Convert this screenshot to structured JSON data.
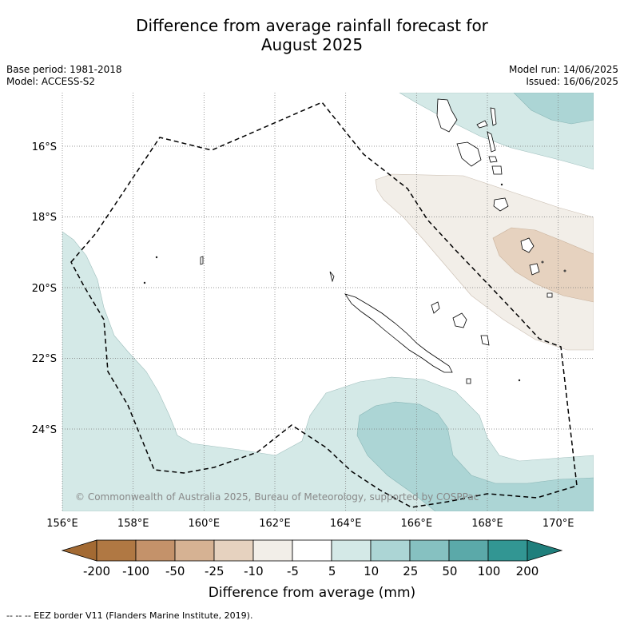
{
  "title_line1": "Difference from average rainfall forecast for",
  "title_line2": "August 2025",
  "meta_left": {
    "base_period": "Base period: 1981-2018",
    "model": "Model: ACCESS-S2"
  },
  "meta_right": {
    "model_run": "Model run: 14/06/2025",
    "issued": "Issued: 16/06/2025"
  },
  "map": {
    "lon_ticks": [
      "156°E",
      "158°E",
      "160°E",
      "162°E",
      "164°E",
      "166°E",
      "168°E",
      "170°E"
    ],
    "lat_ticks": [
      "16°S",
      "18°S",
      "20°S",
      "22°S",
      "24°S"
    ],
    "lon_range": [
      156,
      171
    ],
    "lat_range": [
      -26.3,
      -14.5
    ],
    "copyright": "© Commonwealth of Australia 2025, Bureau of Meteorology, supported by COSPPac"
  },
  "colorbar": {
    "labels": [
      "-200",
      "-100",
      "-50",
      "-25",
      "-10",
      "-5",
      "5",
      "10",
      "25",
      "50",
      "100",
      "200"
    ],
    "colors": [
      "#a36a33",
      "#b07843",
      "#c4926a",
      "#d6b293",
      "#e6d2bf",
      "#f2eee8",
      "#ffffff",
      "#d4e9e7",
      "#acd5d5",
      "#86c1c1",
      "#5ba9a9",
      "#329693",
      "#1f7f7c"
    ],
    "title": "Difference from average (mm)"
  },
  "footer": "-- -- -- EEZ border V11 (Flanders Marine Institute, 2019)."
}
